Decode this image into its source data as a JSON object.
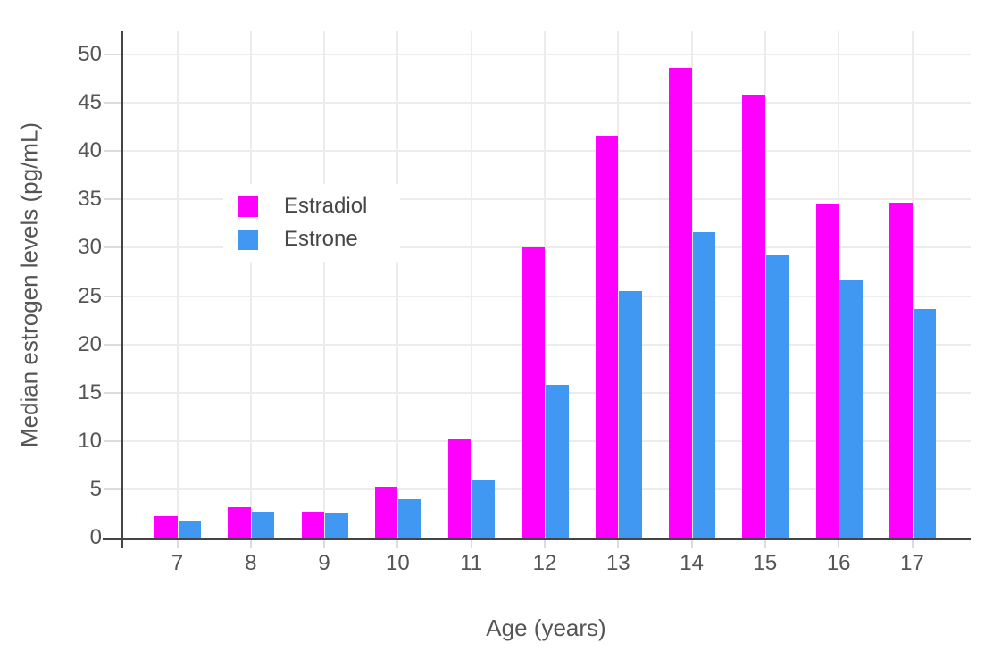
{
  "chart": {
    "y_axis_title": "Median estrogen levels (pg/mL)",
    "x_axis_title": "Age (years)"
  },
  "chart_data": {
    "type": "bar",
    "mode": "grouped",
    "title": "",
    "xlabel": "Age (years)",
    "ylabel": "Median estrogen levels (pg/mL)",
    "categories": [
      "7",
      "8",
      "9",
      "10",
      "11",
      "12",
      "13",
      "14",
      "15",
      "16",
      "17"
    ],
    "series": [
      {
        "name": "Estradiol",
        "color": "#ff00ff",
        "values": [
          2.2,
          3.1,
          2.7,
          5.3,
          10.2,
          30.0,
          41.6,
          48.6,
          45.8,
          34.6,
          34.7
        ]
      },
      {
        "name": "Estrone",
        "color": "#4198f3",
        "values": [
          1.8,
          2.7,
          2.6,
          4.0,
          5.9,
          15.8,
          25.5,
          31.6,
          29.3,
          26.6,
          23.7
        ]
      }
    ],
    "ylim": [
      0,
      50
    ],
    "yticks": [
      0,
      5,
      10,
      15,
      20,
      25,
      30,
      35,
      40,
      45,
      50
    ],
    "grid": "horizontal-and-vertical",
    "legend_position": "inside-upper-left",
    "axis_color": "#444444",
    "gridline_color": "#ececec"
  }
}
